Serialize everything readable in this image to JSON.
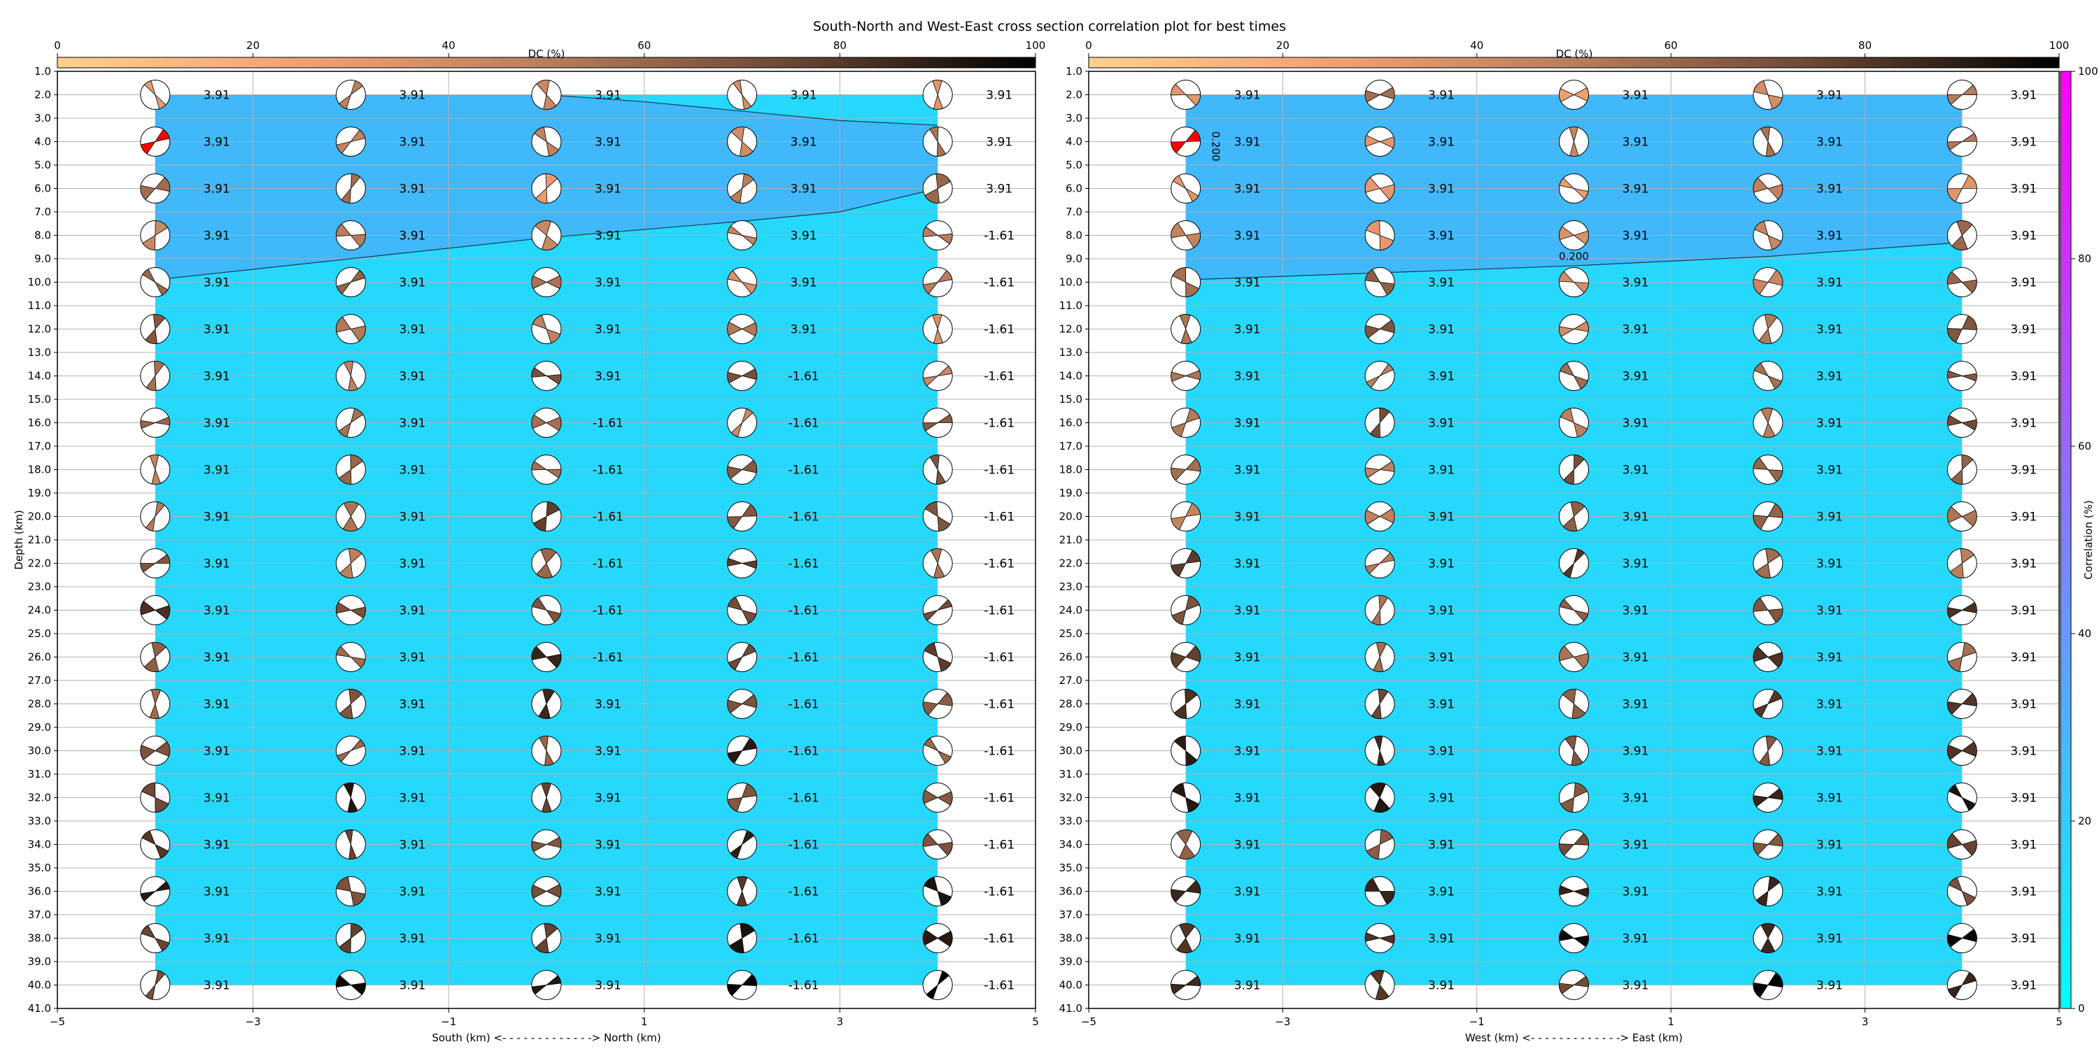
{
  "figure": {
    "title": "South-North and West-East cross section correlation plot for best times",
    "colors": {
      "field_high": "#40b8fa",
      "field_low": "#26d8fb",
      "grid": "#b0b0b0",
      "beachball_highlight": "#ff0000",
      "correlation_cmap": [
        "#00ffff",
        "#ff00ff"
      ],
      "dc_cmap": [
        "#ffc88a",
        "#f0a070",
        "#a8684a",
        "#5a3a28",
        "#000000"
      ]
    }
  },
  "chart_data": [
    {
      "type": "heatmap",
      "panel": "south-north",
      "xlabel": "South (km) <- - - - - - - - - - - - -> North (km)",
      "ylabel": "Depth (km)",
      "xlim": [
        -5,
        5
      ],
      "ylim": [
        41,
        1
      ],
      "x_ticks": [
        "-5",
        "-3",
        "-1",
        "1",
        "3",
        "5"
      ],
      "y_ticks": [
        "1.0",
        "2.0",
        "3.0",
        "4.0",
        "5.0",
        "6.0",
        "7.0",
        "8.0",
        "9.0",
        "10.0",
        "11.0",
        "12.0",
        "13.0",
        "14.0",
        "15.0",
        "16.0",
        "17.0",
        "18.0",
        "19.0",
        "20.0",
        "21.0",
        "22.0",
        "23.0",
        "24.0",
        "25.0",
        "26.0",
        "27.0",
        "28.0",
        "29.0",
        "30.0",
        "31.0",
        "32.0",
        "33.0",
        "34.0",
        "35.0",
        "36.0",
        "37.0",
        "38.0",
        "39.0",
        "40.0",
        "41.0"
      ],
      "station_x": [
        -4,
        -2,
        0,
        2,
        4
      ],
      "depths": [
        2,
        4,
        6,
        8,
        10,
        12,
        14,
        16,
        18,
        20,
        22,
        24,
        26,
        28,
        30,
        32,
        34,
        36,
        38,
        40
      ],
      "time_labels": [
        [
          "3.91",
          "3.91",
          "3.91",
          "3.91",
          "3.91"
        ],
        [
          "3.91",
          "3.91",
          "3.91",
          "3.91",
          "3.91"
        ],
        [
          "3.91",
          "3.91",
          "3.91",
          "3.91",
          "3.91"
        ],
        [
          "3.91",
          "3.91",
          "3.91",
          "3.91",
          "-1.61"
        ],
        [
          "3.91",
          "3.91",
          "3.91",
          "3.91",
          "-1.61"
        ],
        [
          "3.91",
          "3.91",
          "3.91",
          "3.91",
          "-1.61"
        ],
        [
          "3.91",
          "3.91",
          "3.91",
          "-1.61",
          "-1.61"
        ],
        [
          "3.91",
          "3.91",
          "-1.61",
          "-1.61",
          "-1.61"
        ],
        [
          "3.91",
          "3.91",
          "-1.61",
          "-1.61",
          "-1.61"
        ],
        [
          "3.91",
          "3.91",
          "-1.61",
          "-1.61",
          "-1.61"
        ],
        [
          "3.91",
          "3.91",
          "-1.61",
          "-1.61",
          "-1.61"
        ],
        [
          "3.91",
          "3.91",
          "-1.61",
          "-1.61",
          "-1.61"
        ],
        [
          "3.91",
          "3.91",
          "-1.61",
          "-1.61",
          "-1.61"
        ],
        [
          "3.91",
          "3.91",
          "3.91",
          "-1.61",
          "-1.61"
        ],
        [
          "3.91",
          "3.91",
          "3.91",
          "-1.61",
          "-1.61"
        ],
        [
          "3.91",
          "3.91",
          "3.91",
          "-1.61",
          "-1.61"
        ],
        [
          "3.91",
          "3.91",
          "3.91",
          "-1.61",
          "-1.61"
        ],
        [
          "3.91",
          "3.91",
          "3.91",
          "-1.61",
          "-1.61"
        ],
        [
          "3.91",
          "3.91",
          "3.91",
          "-1.61",
          "-1.61"
        ],
        [
          "3.91",
          "3.91",
          "3.91",
          "-1.61",
          "-1.61"
        ]
      ],
      "highlight_cell": [
        4,
        0
      ],
      "correlation_contour": {
        "upper": {
          "x": [
            0,
            1,
            2,
            3,
            4
          ],
          "depth": [
            2.0,
            2.3,
            2.7,
            3.1,
            3.3
          ]
        },
        "lower": {
          "x": [
            -4,
            -2,
            0,
            2,
            3,
            4
          ],
          "depth": [
            9.9,
            9.0,
            8.1,
            7.4,
            7.0,
            6.0
          ]
        }
      }
    },
    {
      "type": "heatmap",
      "panel": "west-east",
      "xlabel": "West (km) <- - - - - - - - - - - - -> East (km)",
      "ylabel": "",
      "xlim": [
        -5,
        5
      ],
      "ylim": [
        41,
        1
      ],
      "x_ticks": [
        "-5",
        "-3",
        "-1",
        "1",
        "3",
        "5"
      ],
      "station_x": [
        -4,
        -2,
        0,
        2,
        4
      ],
      "depths": [
        2,
        4,
        6,
        8,
        10,
        12,
        14,
        16,
        18,
        20,
        22,
        24,
        26,
        28,
        30,
        32,
        34,
        36,
        38,
        40
      ],
      "time_labels_all": "3.91",
      "highlight_cell": [
        4,
        0
      ],
      "contour_labels": [
        "0.200",
        "0.200"
      ],
      "correlation_contour": {
        "lower": {
          "x": [
            -4,
            0,
            2,
            4
          ],
          "depth": [
            9.9,
            9.3,
            8.9,
            8.3
          ]
        }
      }
    }
  ],
  "colorbars": {
    "dc": {
      "label": "DC (%)",
      "ticks": [
        "0",
        "20",
        "40",
        "60",
        "80",
        "100"
      ],
      "range": [
        0,
        100
      ]
    },
    "correlation": {
      "label": "Correlation (%)",
      "ticks": [
        "0",
        "20",
        "40",
        "60",
        "80",
        "100"
      ],
      "range": [
        0,
        100
      ]
    }
  }
}
